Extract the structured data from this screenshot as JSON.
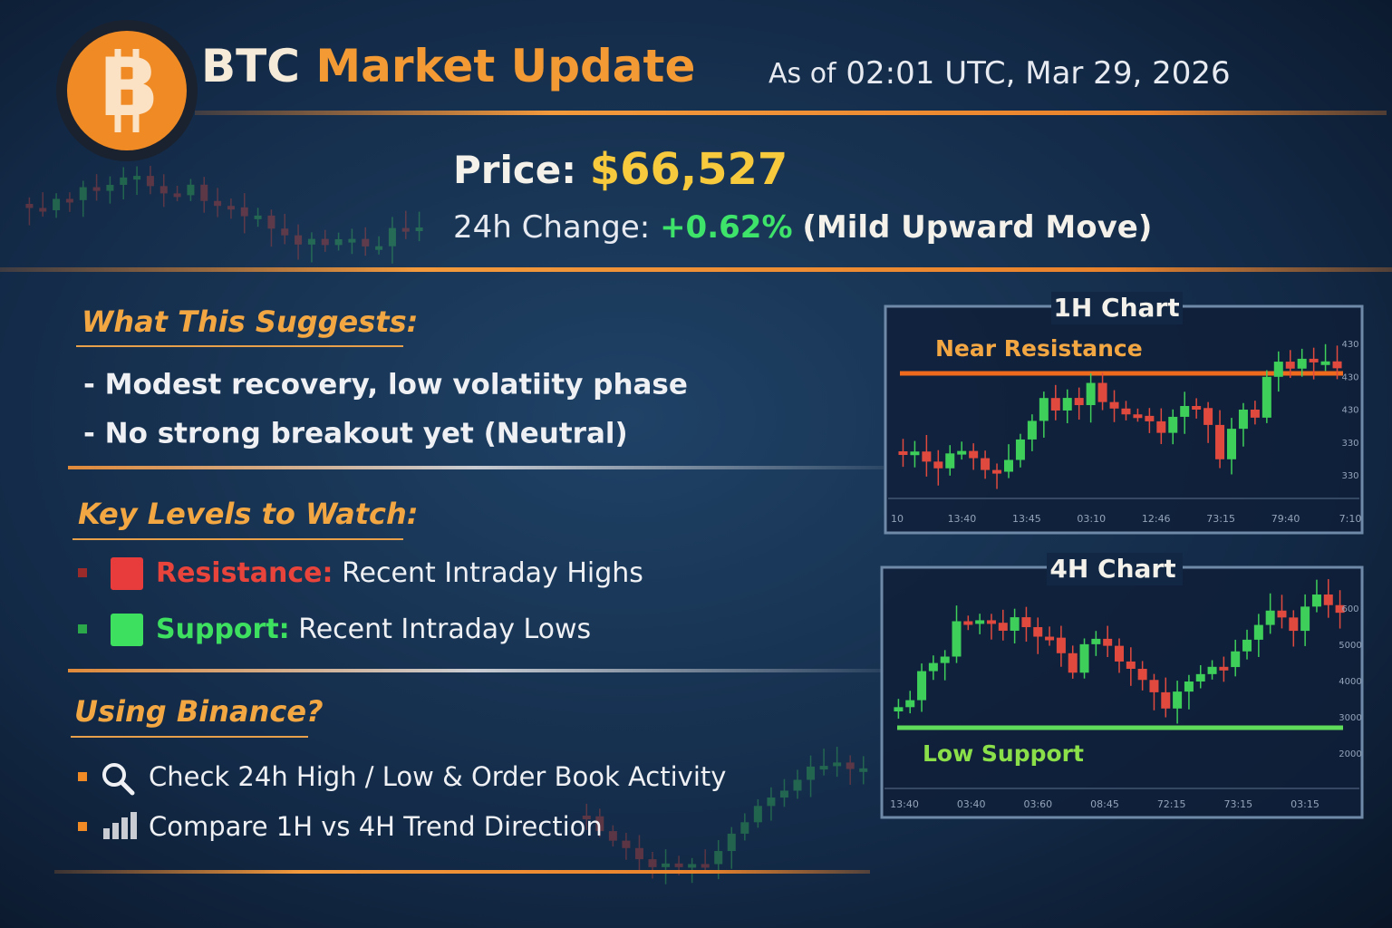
{
  "header": {
    "logo": "B",
    "title_prefix": "BTC",
    "title_main": "Market Update",
    "timestamp_prefix": "As of",
    "timestamp": "02:01 UTC, Mar 29, 2026"
  },
  "price": {
    "label": "Price:",
    "value": "$66,527"
  },
  "change": {
    "label": "24h Change:",
    "value": "+0.62%",
    "note": "(Mild Upward Move)"
  },
  "suggests": {
    "heading": "What This Suggests:",
    "items": [
      "- Modest recovery, low volatiity phase",
      "- No strong breakout yet (Neutral)"
    ]
  },
  "levels": {
    "heading": "Key Levels to Watch:",
    "items": [
      {
        "label": "Resistance:",
        "text": "Recent Intraday Highs"
      },
      {
        "label": "Support:",
        "text": "Recent Intraday Lows"
      }
    ]
  },
  "binance": {
    "heading": "Using Binance?",
    "items": [
      "Check 24h High / Low & Order Book Activity",
      "Compare 1H vs 4H Trend Direction"
    ]
  },
  "charts": [
    {
      "title": "1H Chart",
      "annotation": "Near Resistance",
      "x_labels": [
        "10",
        "13:40",
        "13:45",
        "03:10",
        "12:46",
        "73:15",
        "79:40",
        "7:10"
      ],
      "y_labels": [
        "430",
        "430",
        "430",
        "330",
        "330"
      ]
    },
    {
      "title": "4H Chart",
      "annotation": "Low Support",
      "x_labels": [
        "13:40",
        "03:40",
        "03:60",
        "08:45",
        "72:15",
        "73:15",
        "03:15"
      ],
      "y_labels": [
        "600",
        "5000",
        "4000",
        "3000",
        "2000"
      ]
    }
  ]
}
